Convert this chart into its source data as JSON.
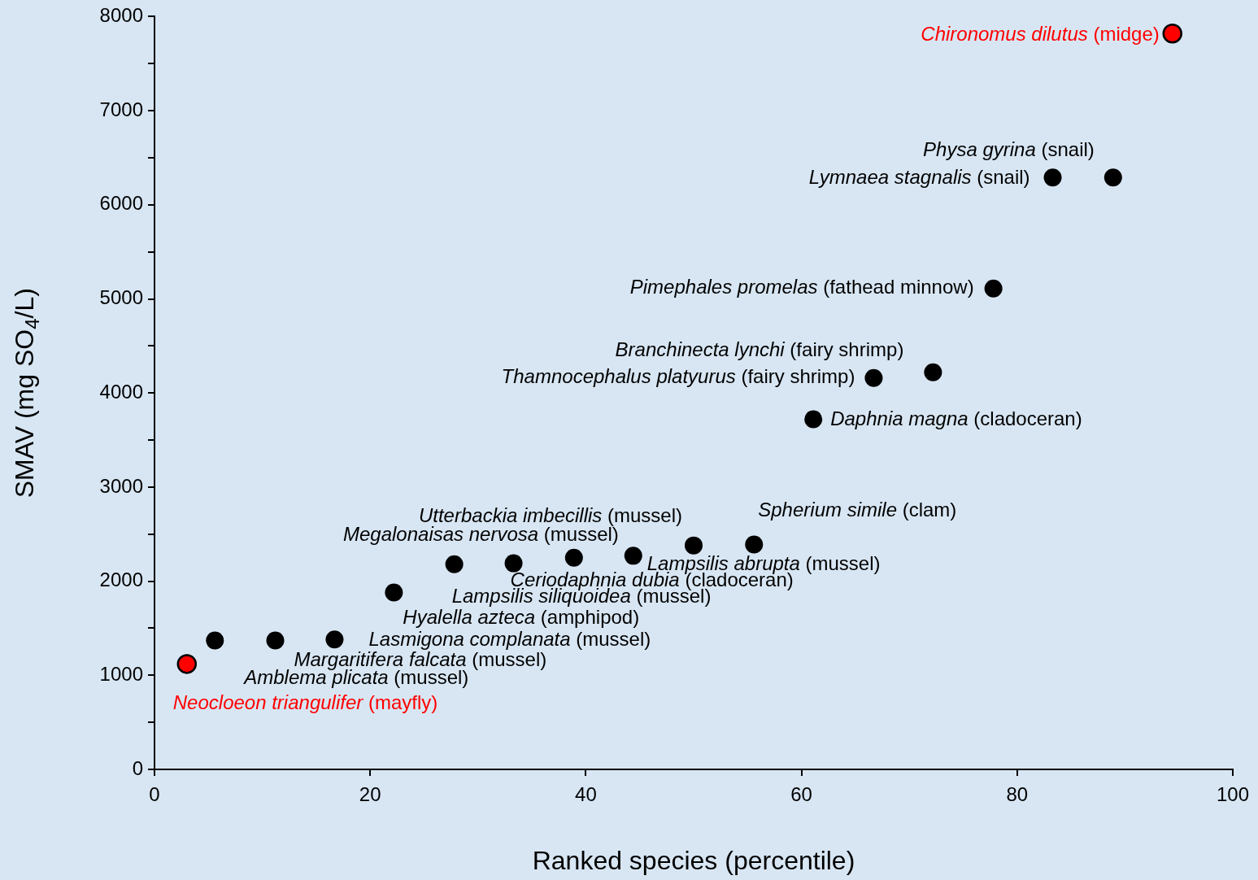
{
  "chart_data": {
    "type": "scatter",
    "xlabel": "Ranked species (percentile)",
    "ylabel": "SMAV (mg SO$_{4}$/L)",
    "xlim": [
      0,
      100
    ],
    "xticks": [
      0,
      20,
      40,
      60,
      80,
      100
    ],
    "ylim": [
      0,
      8000
    ],
    "yticks": [
      0,
      {
        "value": 500,
        "label": null
      },
      1000,
      {
        "value": 1500,
        "label": null
      },
      2000,
      {
        "value": 2500,
        "label": null
      },
      3000,
      {
        "value": 3500,
        "label": null
      },
      4000,
      {
        "value": 4500,
        "label": null
      },
      5000,
      {
        "value": 5500,
        "label": null
      },
      6000,
      {
        "value": 6500,
        "label": null
      },
      7000,
      {
        "value": 7500,
        "label": null
      },
      8000
    ],
    "grid": false,
    "legend": false,
    "marker": "circle",
    "series": [
      {
        "color": "#000000",
        "x": [
          5.6,
          11.2,
          16.7,
          22.2,
          27.8,
          33.3,
          38.9,
          44.4,
          50.0,
          55.6,
          61.1,
          66.7,
          72.2,
          77.8,
          83.3,
          88.9
        ],
        "values": [
          1370,
          1370,
          1380,
          1880,
          2180,
          2190,
          2250,
          2270,
          2380,
          2390,
          3720,
          4160,
          4220,
          5110,
          6290,
          6290
        ]
      },
      {
        "color": "#ff0000",
        "x": [
          3.0,
          94.4
        ],
        "values": [
          1120,
          7820
        ]
      }
    ],
    "annotations": [
      {
        "text": "Chironomus dilutus (midge)",
        "x": 94.4,
        "y": 7820
      },
      {
        "text": "Physa gyrina (snail)",
        "x": 88.9,
        "y": 6290
      },
      {
        "text": "Lymnaea stagnalis (snail)",
        "x": 83.3,
        "y": 6290
      },
      {
        "text": "Pimephales promelas (fathead minnow)",
        "x": 77.8,
        "y": 5110
      },
      {
        "text": "Branchinecta lynchi (fairy shrimp)",
        "x": 72.2,
        "y": 4220
      },
      {
        "text": "Thamnocephalus platyurus (fairy shrimp)",
        "x": 66.7,
        "y": 4160
      },
      {
        "text": "Daphnia magna (cladoceran)",
        "x": 61.1,
        "y": 3720
      },
      {
        "text": "Spherium simile (clam)",
        "x": 55.6,
        "y": 2390
      },
      {
        "text": "Utterbackia imbecillis (mussel)",
        "x": 50.0,
        "y": 2380
      },
      {
        "text": "Megalonaisas nervosa (mussel)",
        "x": 38.9,
        "y": 2250
      },
      {
        "text": "Lampsilis abrupta (mussel)",
        "x": 44.4,
        "y": 2270
      },
      {
        "text": "Ceriodaphnia dubia (cladoceran)",
        "x": 33.3,
        "y": 2190
      },
      {
        "text": "Lampsilis siliquoidea (mussel)",
        "x": 27.8,
        "y": 2180
      },
      {
        "text": "Hyalella azteca (amphipod)",
        "x": 22.2,
        "y": 1880
      },
      {
        "text": "Lasmigona complanata (mussel)",
        "x": 16.7,
        "y": 1380
      },
      {
        "text": "Margaritifera falcata (mussel)",
        "x": 11.2,
        "y": 1370
      },
      {
        "text": "Amblema plicata (mussel)",
        "x": 5.6,
        "y": 1370
      },
      {
        "text": "Neocloeon triangulifer (mayfly)",
        "x": 3.0,
        "y": 1120
      }
    ]
  }
}
